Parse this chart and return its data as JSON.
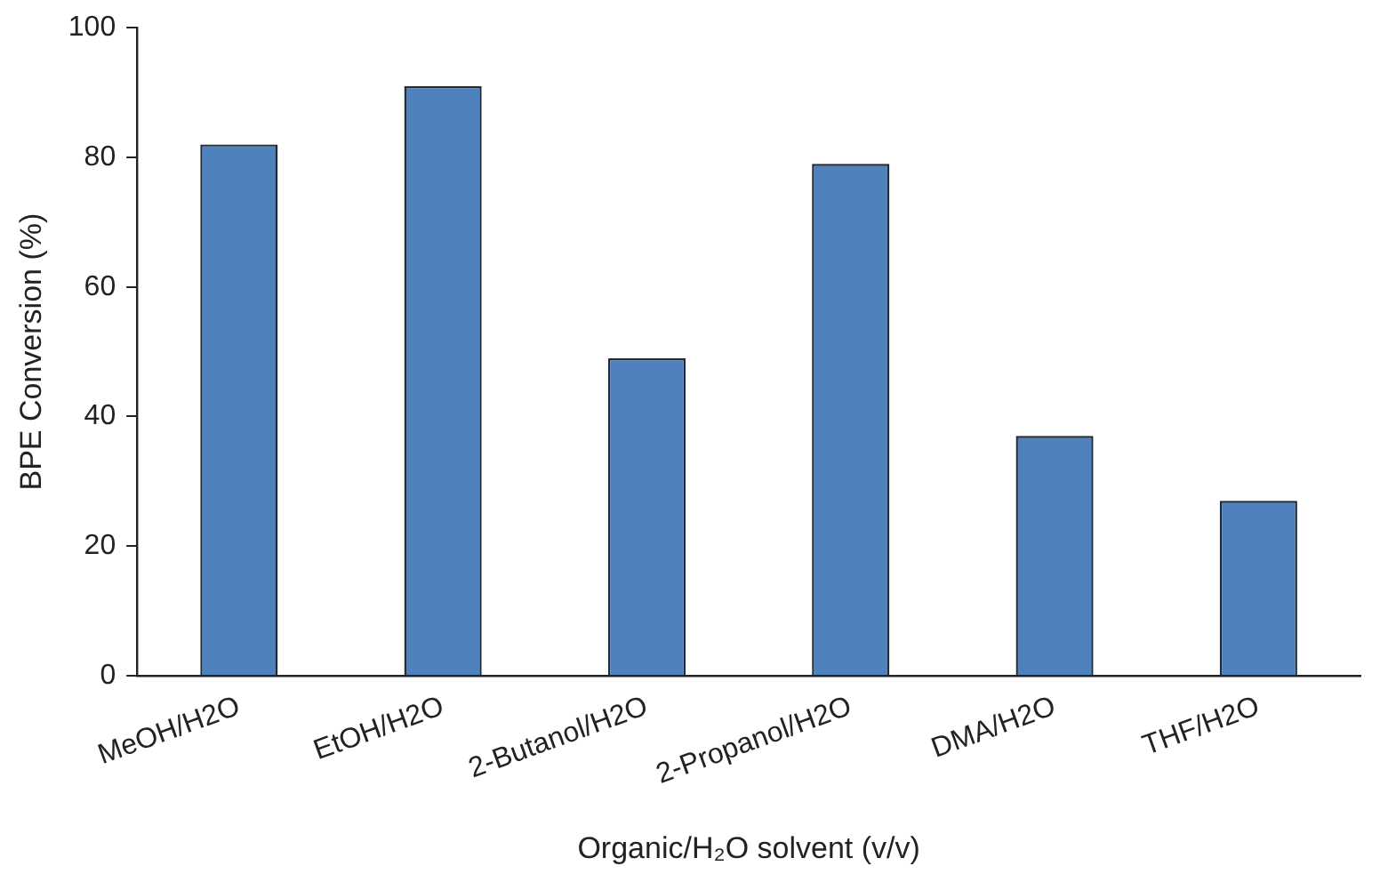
{
  "chart_data": {
    "type": "bar",
    "ylabel": "BPE Conversion (%)",
    "xlabel": "Organic/H₂O solvent (v/v)",
    "categories": [
      "MeOH/H2O",
      "EtOH/H2O",
      "2-Butanol/H2O",
      "2-Propanol/H2O",
      "DMA/H2O",
      "THF/H2O"
    ],
    "values": [
      82,
      91,
      49,
      79,
      37,
      27
    ],
    "color": "#4f81bd",
    "ylim": [
      0,
      100
    ],
    "yticks": [
      0,
      20,
      40,
      60,
      80,
      100
    ],
    "grid": false,
    "legend": false
  }
}
